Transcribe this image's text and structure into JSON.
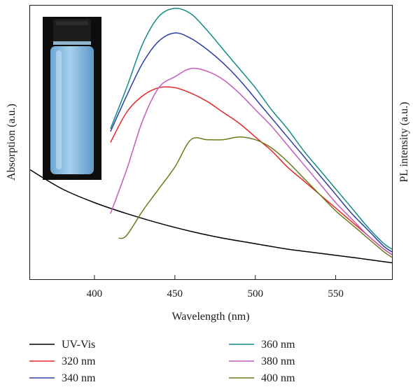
{
  "chart_data": {
    "type": "line",
    "title": "",
    "xlabel": "Wavelength (nm)",
    "ylabel_left": "Absorption (a.u.)",
    "ylabel_right": "PL intensity (a.u.)",
    "xlim": [
      360,
      585
    ],
    "xticks": [
      400,
      450,
      500,
      550
    ],
    "ylim": [
      0,
      100
    ],
    "grid": false,
    "legend_position": "bottom",
    "inset": "photo of a vial glowing light blue",
    "series": [
      {
        "name": "UV-Vis",
        "color": "#000000",
        "x": [
          360,
          380,
          400,
          420,
          440,
          460,
          480,
          500,
          520,
          540,
          560,
          585
        ],
        "y": [
          40,
          33,
          28,
          24,
          20.5,
          17.5,
          15,
          13,
          11,
          9.5,
          8,
          6
        ]
      },
      {
        "name": "320 nm",
        "color": "#e8262a",
        "x": [
          410,
          420,
          430,
          440,
          450,
          460,
          470,
          480,
          490,
          500,
          510,
          520,
          530,
          540,
          550,
          560,
          570,
          580,
          585
        ],
        "y": [
          50,
          61,
          67,
          70,
          70,
          68,
          65,
          61,
          57,
          52,
          47,
          41,
          36,
          31,
          26,
          21,
          16,
          11,
          9
        ]
      },
      {
        "name": "340 nm",
        "color": "#2e3fa0",
        "x": [
          410,
          420,
          430,
          440,
          450,
          460,
          470,
          480,
          490,
          500,
          510,
          520,
          530,
          540,
          550,
          560,
          570,
          580,
          585
        ],
        "y": [
          54,
          67,
          79,
          87,
          90,
          88,
          84,
          79,
          73,
          66,
          59,
          52,
          45,
          38,
          31,
          24,
          18,
          12,
          10
        ]
      },
      {
        "name": "360 nm",
        "color": "#128c86",
        "x": [
          410,
          420,
          430,
          440,
          450,
          460,
          470,
          480,
          490,
          500,
          510,
          520,
          530,
          540,
          550,
          560,
          570,
          580,
          585
        ],
        "y": [
          55,
          70,
          86,
          96,
          99,
          97,
          91,
          84,
          77,
          70,
          62,
          55,
          47,
          40,
          33,
          26,
          19,
          13,
          11
        ]
      },
      {
        "name": "380 nm",
        "color": "#c45cbc",
        "x": [
          410,
          420,
          430,
          440,
          450,
          460,
          470,
          480,
          490,
          500,
          510,
          520,
          530,
          540,
          550,
          560,
          570,
          580,
          585
        ],
        "y": [
          24,
          40,
          58,
          70,
          74,
          77,
          76,
          73,
          68,
          62,
          56,
          49,
          42,
          35,
          28,
          22,
          16,
          11,
          9
        ]
      },
      {
        "name": "400 nm",
        "color": "#6f7a1c",
        "x": [
          415,
          420,
          430,
          440,
          450,
          460,
          470,
          480,
          490,
          500,
          510,
          520,
          530,
          540,
          550,
          560,
          570,
          580,
          585
        ],
        "y": [
          15,
          16,
          25,
          33,
          41,
          51,
          51,
          51,
          52,
          51,
          48,
          43,
          37,
          31,
          25,
          20,
          15,
          10,
          8
        ]
      }
    ]
  }
}
